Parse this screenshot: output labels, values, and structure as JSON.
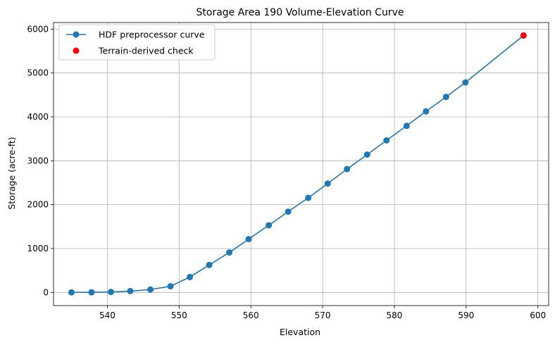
{
  "chart_data": {
    "type": "line",
    "title": "Storage Area 190 Volume-Elevation Curve",
    "xlabel": "Elevation",
    "ylabel": "Storage (acre-ft)",
    "xlim": [
      532.5,
      601.5
    ],
    "ylim": [
      -300,
      6150
    ],
    "xticks": [
      540,
      550,
      560,
      570,
      580,
      590,
      600
    ],
    "yticks": [
      0,
      1000,
      2000,
      3000,
      4000,
      5000,
      6000
    ],
    "grid": true,
    "legend_position": "top-left",
    "series": [
      {
        "name": "HDF preprocessor curve",
        "color": "#1f77b4",
        "style": "line-with-markers",
        "x": [
          535.0,
          537.8,
          540.5,
          543.2,
          546.0,
          548.8,
          551.5,
          554.2,
          557.0,
          559.7,
          562.5,
          565.2,
          568.0,
          570.7,
          573.4,
          576.2,
          578.9,
          581.7,
          584.4,
          587.2,
          589.9,
          598.0
        ],
        "y": [
          0,
          2,
          10,
          30,
          65,
          140,
          350,
          625,
          910,
          1215,
          1530,
          1840,
          2155,
          2480,
          2810,
          3140,
          3465,
          3795,
          4125,
          4455,
          4785,
          5855
        ]
      },
      {
        "name": "Terrain-derived check",
        "color": "#ff0000",
        "style": "scatter",
        "x": [
          598.0
        ],
        "y": [
          5855
        ]
      }
    ]
  }
}
